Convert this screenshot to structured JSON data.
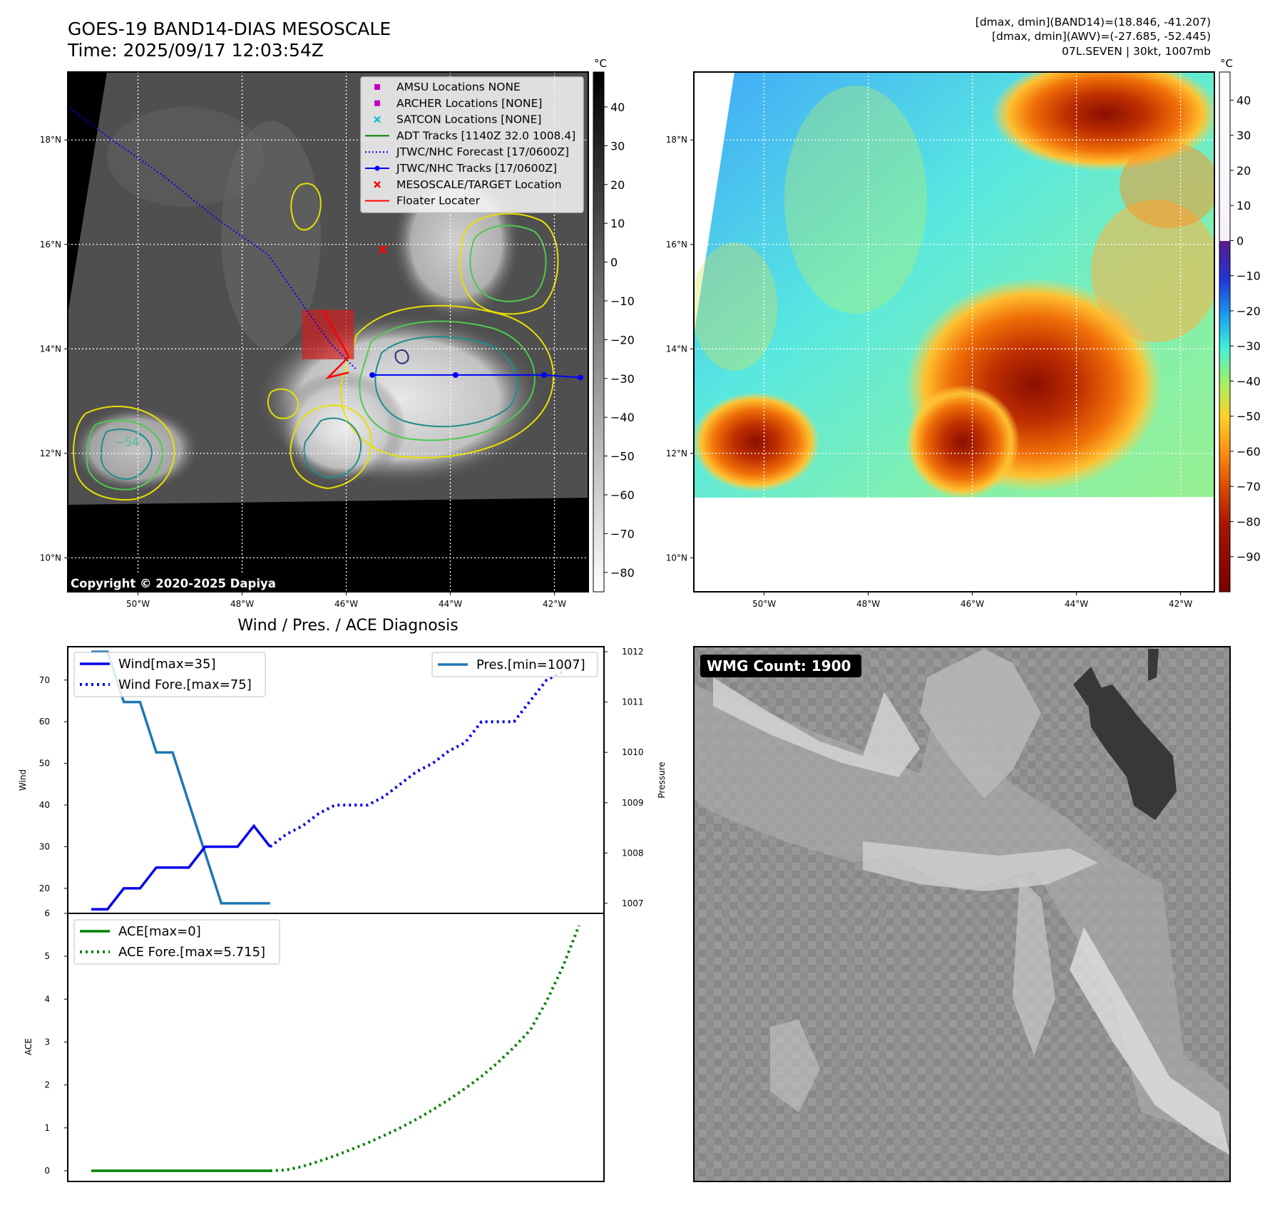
{
  "header": {
    "title_line1": "GOES-19 BAND14-DIAS MESOSCALE",
    "title_line2": "Time: 2025/09/17 12:03:54Z",
    "info_line1": "[dmax, dmin](BAND14)=(18.846, -41.207)",
    "info_line2": "[dmax, dmin](AWV)=(-27.685, -52.445)",
    "info_line3": "07L.SEVEN | 30kt, 1007mb"
  },
  "ir_map": {
    "lat_labels": [
      "18°N",
      "16°N",
      "14°N",
      "12°N",
      "10°N"
    ],
    "lat_values": [
      18,
      16,
      14,
      12,
      10
    ],
    "lon_labels": [
      "50°W",
      "48°W",
      "46°W",
      "44°W",
      "42°W"
    ],
    "lon_values": [
      -50,
      -48,
      -46,
      -44,
      -42
    ],
    "extent": {
      "lon": [
        -51.35,
        -41.35
      ],
      "lat": [
        9.35,
        19.3
      ]
    },
    "colorbar": {
      "unit": "°C",
      "ticks": [
        "40",
        "30",
        "20",
        "10",
        "0",
        "−10",
        "−20",
        "−30",
        "−40",
        "−50",
        "−60",
        "−70",
        "−80"
      ],
      "tick_values": [
        40,
        30,
        20,
        10,
        0,
        -10,
        -20,
        -30,
        -40,
        -50,
        -60,
        -70,
        -80
      ],
      "range": [
        -85,
        49
      ]
    },
    "legend": [
      {
        "label": "AMSU Locations NONE",
        "kind": "square",
        "color": "#c000c0"
      },
      {
        "label": "ARCHER Locations [NONE]",
        "kind": "square",
        "color": "#c000c0"
      },
      {
        "label": "SATCON Locations [NONE]",
        "kind": "x",
        "color": "#17becf"
      },
      {
        "label": "ADT Tracks [1140Z 32.0 1008.4]",
        "kind": "line",
        "color": "#008000"
      },
      {
        "label": "JTWC/NHC Forecast [17/0600Z]",
        "kind": "dotted",
        "color": "#0000ff"
      },
      {
        "label": "JTWC/NHC Tracks [17/0600Z]",
        "kind": "line-dot",
        "color": "#0000ff"
      },
      {
        "label": "MESOSCALE/TARGET Location",
        "kind": "x",
        "color": "#ff0000"
      },
      {
        "label": "Floater Locater",
        "kind": "line",
        "color": "#ff0000"
      }
    ],
    "contour_label": "−54",
    "copyright": "Copyright © 2020-2025 Dapiya",
    "forecast_track": [
      [
        -51.3,
        18.6
      ],
      [
        -50.5,
        18.0
      ],
      [
        -49.5,
        17.3
      ],
      [
        -48.5,
        16.5
      ],
      [
        -47.5,
        15.8
      ],
      [
        -46.8,
        14.8
      ],
      [
        -46.3,
        14.1
      ],
      [
        -45.8,
        13.6
      ]
    ],
    "best_track": [
      [
        -45.5,
        13.5
      ],
      [
        -43.9,
        13.5
      ],
      [
        -42.2,
        13.5
      ],
      [
        -41.5,
        13.45
      ]
    ],
    "target": [
      -45.3,
      15.9
    ],
    "floater": [
      [
        -46.45,
        14.75
      ],
      [
        -45.95,
        13.85
      ],
      [
        -46.35,
        13.45
      ],
      [
        -45.95,
        13.55
      ]
    ],
    "mesoscale_box": {
      "lon": [
        -46.85,
        -45.85
      ],
      "lat": [
        13.8,
        14.75
      ]
    }
  },
  "awv_map": {
    "lat_labels": [
      "18°N",
      "16°N",
      "14°N",
      "12°N",
      "10°N"
    ],
    "lon_labels": [
      "50°W",
      "48°W",
      "46°W",
      "44°W",
      "42°W"
    ],
    "colorbar": {
      "unit": "°C",
      "ticks": [
        "40",
        "30",
        "20",
        "10",
        "0",
        "−10",
        "−20",
        "−30",
        "−40",
        "−50",
        "−60",
        "−70",
        "−80",
        "−90"
      ],
      "tick_values": [
        40,
        30,
        20,
        10,
        0,
        -10,
        -20,
        -30,
        -40,
        -50,
        -60,
        -70,
        -80,
        -90
      ],
      "range": [
        -100,
        48
      ]
    }
  },
  "wmg_panel": {
    "label": "WMG Count: 1900"
  },
  "chart_data": [
    {
      "type": "line",
      "title": "Wind / Pres. / ACE Diagnosis",
      "ylabel": "Wind",
      "y2label": "Pressure",
      "ylim": [
        14,
        78
      ],
      "y2lim": [
        1006.8,
        1012.1
      ],
      "yticks": [
        20,
        30,
        40,
        50,
        60,
        70
      ],
      "y2ticks": [
        1007,
        1008,
        1009,
        1010,
        1011,
        1012
      ],
      "series": [
        {
          "name": "Wind[max=35]",
          "style": "solid",
          "color": "#0000ee",
          "x": [
            0,
            1,
            2,
            3,
            4,
            5,
            6,
            7,
            8,
            9,
            10,
            11
          ],
          "values": [
            15,
            15,
            20,
            20,
            25,
            25,
            25,
            30,
            30,
            30,
            35,
            30
          ]
        },
        {
          "name": "Wind Fore.[max=75]",
          "style": "dotted",
          "color": "#0000ee",
          "x": [
            11,
            12,
            13,
            14,
            15,
            16,
            17,
            18,
            19,
            20,
            21,
            22,
            23,
            24,
            25,
            26,
            27,
            28,
            29,
            30
          ],
          "values": [
            30,
            33,
            35,
            38,
            40,
            40,
            40,
            42,
            45,
            48,
            50,
            53,
            55,
            60,
            60,
            60,
            65,
            70,
            72,
            75
          ]
        },
        {
          "name": "Pres.[min=1007]",
          "style": "solid",
          "color": "#1f77b4",
          "axis": "y2",
          "x": [
            0,
            1,
            2,
            3,
            4,
            5,
            6,
            7,
            8,
            9,
            10,
            11
          ],
          "values": [
            1012,
            1012,
            1011,
            1011,
            1010,
            1010,
            1009,
            1008,
            1007,
            1007,
            1007,
            1007
          ]
        }
      ],
      "legend_left": [
        "Wind[max=35]",
        "Wind Fore.[max=75]"
      ],
      "legend_right": [
        "Pres.[min=1007]"
      ]
    },
    {
      "type": "line",
      "ylabel": "ACE",
      "ylim": [
        -0.25,
        6
      ],
      "yticks": [
        0,
        1,
        2,
        3,
        4,
        5,
        6
      ],
      "series": [
        {
          "name": "ACE[max=0]",
          "style": "solid",
          "color": "#008000",
          "x": [
            0,
            11
          ],
          "values": [
            0,
            0
          ]
        },
        {
          "name": "ACE Fore.[max=5.715]",
          "style": "dotted",
          "color": "#008000",
          "x": [
            11,
            12,
            13,
            14,
            15,
            16,
            17,
            18,
            19,
            20,
            21,
            22,
            23,
            24,
            25,
            26,
            27,
            28,
            29,
            30
          ],
          "values": [
            0,
            0.02,
            0.1,
            0.22,
            0.35,
            0.5,
            0.65,
            0.82,
            1.0,
            1.2,
            1.42,
            1.66,
            1.92,
            2.2,
            2.52,
            2.88,
            3.28,
            3.95,
            4.75,
            5.715
          ]
        }
      ]
    }
  ]
}
